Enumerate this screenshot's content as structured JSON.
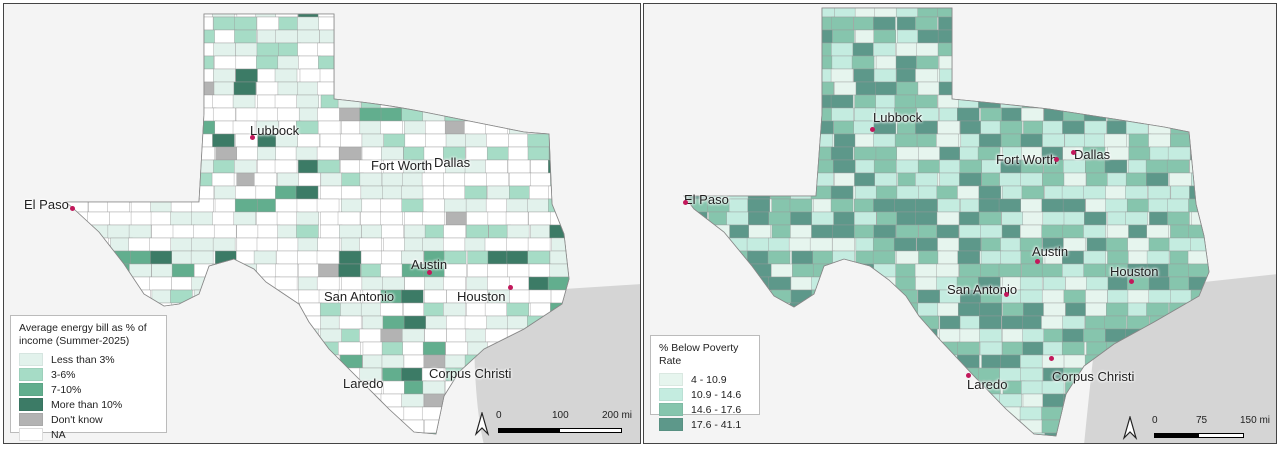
{
  "left_map": {
    "legend": {
      "title": "Average energy bill as % of income (Summer-2025)",
      "items": [
        {
          "label": "Less than 3%",
          "color": "#e2f2ec"
        },
        {
          "label": "3-6%",
          "color": "#a6dcc6"
        },
        {
          "label": "7-10%",
          "color": "#62ae8e"
        },
        {
          "label": "More than 10%",
          "color": "#3c7b66"
        },
        {
          "label": "Don't know",
          "color": "#b3b3b3"
        },
        {
          "label": "NA",
          "color": "#ffffff"
        }
      ]
    },
    "cities": [
      "El Paso",
      "Lubbock",
      "Fort Worth",
      "Dallas",
      "Austin",
      "San Antonio",
      "Houston",
      "Laredo",
      "Corpus Christi"
    ],
    "scale": {
      "ticks": [
        "0",
        "100",
        "200 mi"
      ]
    }
  },
  "right_map": {
    "legend": {
      "title": "% Below Poverty Rate",
      "items": [
        {
          "label": "4 - 10.9",
          "color": "#e6f5ee"
        },
        {
          "label": "10.9 - 14.6",
          "color": "#c4ece0"
        },
        {
          "label": "14.6 - 17.6",
          "color": "#86c5ad"
        },
        {
          "label": "17.6 - 41.1",
          "color": "#5d988a"
        }
      ]
    },
    "cities": [
      "El Paso",
      "Lubbock",
      "Fort Worth",
      "Dallas",
      "Austin",
      "San Antonio",
      "Houston",
      "Laredo",
      "Corpus Christi"
    ],
    "scale": {
      "ticks": [
        "0",
        "75",
        "150 mi"
      ]
    }
  }
}
